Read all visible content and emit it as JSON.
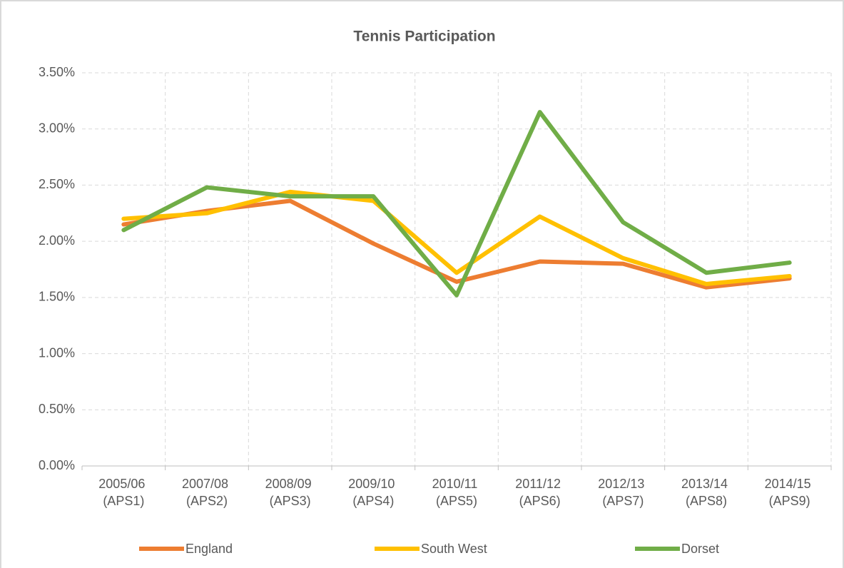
{
  "chart_data": {
    "type": "line",
    "title": "Tennis Participation",
    "categories": [
      "2005/06 (APS1)",
      "2007/08 (APS2)",
      "2008/09 (APS3)",
      "2009/10 (APS4)",
      "2010/11 (APS5)",
      "2011/12 (APS6)",
      "2012/13 (APS7)",
      "2013/14 (APS8)",
      "2014/15 (APS9)"
    ],
    "series": [
      {
        "name": "England",
        "color": "#ed7d31",
        "values": [
          2.15,
          2.27,
          2.36,
          1.98,
          1.64,
          1.82,
          1.8,
          1.59,
          1.67
        ]
      },
      {
        "name": "South West",
        "color": "#ffc000",
        "values": [
          2.2,
          2.25,
          2.44,
          2.36,
          1.72,
          2.22,
          1.85,
          1.62,
          1.69
        ]
      },
      {
        "name": "Dorset",
        "color": "#70ad47",
        "values": [
          2.1,
          2.48,
          2.4,
          2.4,
          1.52,
          3.15,
          2.17,
          1.72,
          1.81
        ]
      }
    ],
    "ylim": [
      0,
      3.5
    ],
    "yticks": [
      {
        "value": 0,
        "label": "0.00%"
      },
      {
        "value": 0.5,
        "label": "0.50%"
      },
      {
        "value": 1,
        "label": "1.00%"
      },
      {
        "value": 1.5,
        "label": "1.50%"
      },
      {
        "value": 2,
        "label": "2.00%"
      },
      {
        "value": 2.5,
        "label": "2.50%"
      },
      {
        "value": 3,
        "label": "3.00%"
      },
      {
        "value": 3.5,
        "label": "3.50%"
      }
    ],
    "grid": true,
    "legend": "bottom"
  }
}
